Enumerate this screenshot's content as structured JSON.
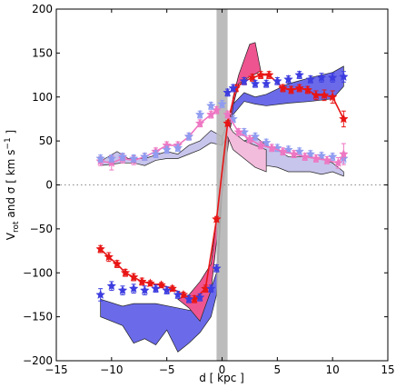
{
  "chart_data": {
    "type": "scatter",
    "xlabel": "d [ kpc ]",
    "ylabel": "V_rot and σ [ km s⁻¹ ]",
    "ylabel_parts": {
      "prefix": "V",
      "sub": "rot",
      "mid": " and σ  [ km s",
      "sup": "−1",
      "suffix": " ]"
    },
    "xlim": [
      -15,
      15
    ],
    "ylim": [
      -200,
      200
    ],
    "x_ticks": [
      -15,
      -10,
      -5,
      0,
      5,
      10,
      15
    ],
    "y_ticks": [
      -200,
      -150,
      -100,
      -50,
      0,
      50,
      100,
      150,
      200
    ],
    "x_tick_labels": [
      "−15",
      "−10",
      "−5",
      "0",
      "5",
      "10",
      "15"
    ],
    "y_tick_labels": [
      "−200",
      "−150",
      "−100",
      "−50",
      "0",
      "50",
      "100",
      "150",
      "200"
    ],
    "grid": false,
    "zero_line": {
      "y": 0,
      "style": "dotted",
      "color": "#888888"
    },
    "center_band": {
      "x": [
        -0.5,
        0.5
      ],
      "color": "#b5b5b5"
    },
    "bands": [
      {
        "name": "gas_rotation_band",
        "fill": "#6b6bea",
        "upper": [
          [
            -11,
            -130
          ],
          [
            -9,
            -138
          ],
          [
            -8,
            -135
          ],
          [
            -6,
            -135
          ],
          [
            -4,
            -140
          ],
          [
            -2,
            -145
          ],
          [
            -1,
            -118
          ],
          [
            -0.5,
            -100
          ],
          [
            0,
            0
          ],
          [
            0.5,
            60
          ],
          [
            1,
            92
          ],
          [
            2,
            105
          ],
          [
            3,
            100
          ],
          [
            4,
            103
          ],
          [
            6,
            115
          ],
          [
            8,
            122
          ],
          [
            10,
            128
          ],
          [
            11,
            135
          ]
        ],
        "lower": [
          [
            -11,
            -150
          ],
          [
            -9,
            -160
          ],
          [
            -8,
            -180
          ],
          [
            -7,
            -175
          ],
          [
            -6,
            -182
          ],
          [
            -5,
            -165
          ],
          [
            -4,
            -190
          ],
          [
            -3,
            -180
          ],
          [
            -2,
            -168
          ],
          [
            -1,
            -150
          ],
          [
            -0.5,
            -125
          ],
          [
            0,
            -10
          ],
          [
            0.5,
            50
          ],
          [
            1,
            80
          ],
          [
            2,
            95
          ],
          [
            3,
            92
          ],
          [
            4,
            90
          ],
          [
            6,
            93
          ],
          [
            8,
            95
          ],
          [
            10,
            98
          ],
          [
            11,
            112
          ]
        ]
      },
      {
        "name": "stellar_rotation_band",
        "fill": "#ee5590",
        "upper": [
          [
            -4,
            -130
          ],
          [
            -3,
            -125
          ],
          [
            -2,
            -110
          ],
          [
            -1,
            -90
          ],
          [
            0,
            10
          ],
          [
            1,
            100
          ],
          [
            1.5,
            125
          ],
          [
            2.5,
            160
          ],
          [
            3,
            162
          ],
          [
            3.5,
            130
          ]
        ],
        "lower": [
          [
            -4,
            -130
          ],
          [
            -3,
            -140
          ],
          [
            -2,
            -155
          ],
          [
            -1,
            -120
          ],
          [
            0,
            -10
          ],
          [
            1,
            90
          ],
          [
            1.5,
            115
          ],
          [
            2.5,
            123
          ],
          [
            3,
            126
          ],
          [
            3.5,
            130
          ]
        ]
      },
      {
        "name": "gas_dispersion_band",
        "fill": "#c8c5ec",
        "upper": [
          [
            -11,
            27
          ],
          [
            -9.5,
            38
          ],
          [
            -8.5,
            30
          ],
          [
            -7,
            30
          ],
          [
            -5,
            38
          ],
          [
            -4,
            35
          ],
          [
            -3,
            45
          ],
          [
            -2,
            50
          ],
          [
            -1,
            62
          ],
          [
            0,
            55
          ],
          [
            0.5,
            70
          ],
          [
            1,
            55
          ],
          [
            2,
            50
          ],
          [
            3,
            55
          ],
          [
            4,
            45
          ],
          [
            5,
            40
          ],
          [
            6,
            32
          ],
          [
            8,
            32
          ],
          [
            9,
            30
          ],
          [
            10,
            25
          ],
          [
            11,
            15
          ]
        ],
        "lower": [
          [
            -11,
            22
          ],
          [
            -9,
            25
          ],
          [
            -8,
            25
          ],
          [
            -7,
            22
          ],
          [
            -6,
            28
          ],
          [
            -5,
            30
          ],
          [
            -4,
            30
          ],
          [
            -3,
            35
          ],
          [
            -2,
            40
          ],
          [
            -1,
            48
          ],
          [
            0,
            45
          ],
          [
            0.5,
            58
          ],
          [
            1,
            45
          ],
          [
            2,
            35
          ],
          [
            3,
            28
          ],
          [
            4,
            22
          ],
          [
            5,
            20
          ],
          [
            6,
            15
          ],
          [
            8,
            15
          ],
          [
            9,
            12
          ],
          [
            10,
            15
          ],
          [
            11,
            10
          ]
        ]
      },
      {
        "name": "stellar_dispersion_band",
        "fill": "#f2bcdc",
        "upper": [
          [
            0,
            55
          ],
          [
            0.5,
            70
          ],
          [
            1,
            60
          ],
          [
            2,
            50
          ],
          [
            3,
            45
          ],
          [
            4,
            40
          ]
        ],
        "lower": [
          [
            0,
            45
          ],
          [
            0.5,
            55
          ],
          [
            1,
            40
          ],
          [
            2,
            30
          ],
          [
            3,
            20
          ],
          [
            4,
            15
          ]
        ]
      }
    ],
    "series": [
      {
        "color": "#e81515",
        "marker": "star",
        "line": true,
        "x": [
          -11,
          -10.25,
          -9.5,
          -8.75,
          -8,
          -7.25,
          -6.5,
          -5.5,
          -4.5,
          -3.5,
          -2.5,
          -1.5,
          -0.5,
          0.5,
          1.25,
          2,
          2.75,
          3.5,
          4.25,
          5.5,
          6.25,
          7,
          7.75,
          8.5,
          9.25,
          10,
          11
        ],
        "y": [
          -73,
          -82,
          -90,
          -100,
          -105,
          -110,
          -112,
          -114,
          -118,
          -125,
          -130,
          -118,
          -39,
          70,
          110,
          118,
          122,
          125,
          125,
          110,
          108,
          110,
          108,
          102,
          102,
          100,
          75
        ],
        "err": [
          4,
          5,
          4,
          4,
          4,
          4,
          3,
          3,
          3,
          3,
          4,
          4,
          3,
          3,
          4,
          4,
          4,
          4,
          4,
          4,
          4,
          4,
          4,
          5,
          6,
          7,
          9
        ]
      },
      {
        "color": "#3c3ce0",
        "marker": "star",
        "line": false,
        "x": [
          -11,
          -10,
          -9,
          -8,
          -7,
          -6,
          -5,
          -4,
          -3,
          -2,
          -1,
          -0.5,
          0.5,
          1,
          2,
          3,
          4,
          5,
          6,
          7,
          8,
          9,
          10,
          11
        ],
        "y": [
          -125,
          -115,
          -120,
          -118,
          -120,
          -118,
          -120,
          -125,
          -130,
          -128,
          -118,
          -95,
          105,
          110,
          118,
          115,
          115,
          118,
          120,
          125,
          120,
          122,
          122,
          123
        ],
        "err": [
          7,
          5,
          5,
          5,
          5,
          4,
          4,
          4,
          4,
          4,
          4,
          4,
          4,
          4,
          4,
          4,
          4,
          4,
          4,
          4,
          4,
          5,
          5,
          6
        ]
      },
      {
        "color": "#ee76c2",
        "marker": "star",
        "line": true,
        "x": [
          -11,
          -10,
          -9,
          -8,
          -7,
          -6,
          -5,
          -4,
          -3,
          -2,
          -1,
          -0.5
        ],
        "y": [
          27,
          25,
          30,
          28,
          32,
          38,
          45,
          45,
          55,
          70,
          80,
          85
        ],
        "err": [
          5,
          8,
          5,
          5,
          4,
          4,
          4,
          4,
          4,
          4,
          4,
          4
        ]
      },
      {
        "color": "#8f9cf0",
        "marker": "star",
        "line": false,
        "x": [
          -11,
          -10,
          -9,
          -8,
          -7,
          -6,
          -5,
          -4,
          -3,
          -2,
          -1,
          0,
          1,
          2,
          3,
          4,
          5,
          6,
          7,
          8,
          9,
          10,
          11
        ],
        "y": [
          30,
          30,
          32,
          30,
          32,
          35,
          40,
          42,
          55,
          80,
          90,
          92,
          75,
          60,
          55,
          48,
          42,
          40,
          38,
          35,
          33,
          32,
          30
        ],
        "err": [
          4,
          4,
          4,
          4,
          4,
          4,
          4,
          4,
          4,
          4,
          4,
          4,
          4,
          4,
          4,
          4,
          4,
          4,
          4,
          4,
          4,
          4,
          5
        ]
      },
      {
        "color": "#ee76c2",
        "marker": "star",
        "line": true,
        "x": [
          0.5,
          1.5,
          2.5,
          3.5,
          4.5,
          5.5,
          6.5,
          7.5,
          8.5,
          9.5,
          10.5,
          11
        ],
        "y": [
          80,
          60,
          52,
          45,
          42,
          38,
          35,
          32,
          30,
          28,
          25,
          35
        ],
        "err": [
          4,
          4,
          4,
          4,
          4,
          4,
          4,
          4,
          4,
          4,
          6,
          12
        ]
      }
    ]
  }
}
